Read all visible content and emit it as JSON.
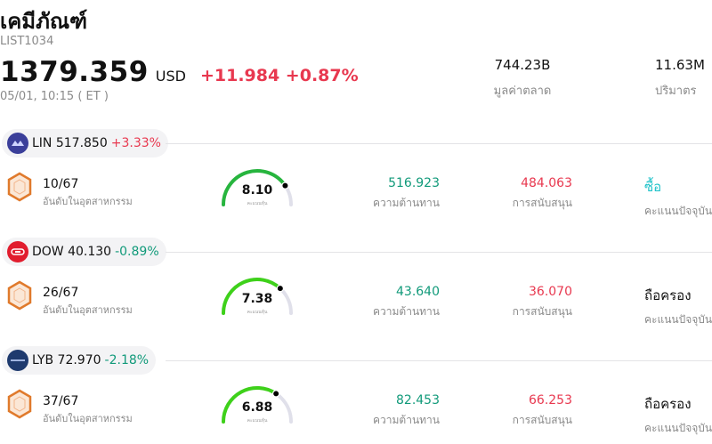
{
  "header": {
    "title": "เคมีภัณฑ์",
    "ticker": "LIST1034",
    "price": "1379.359",
    "currency": "USD",
    "change": "+11.984 +0.87%",
    "timestamp": "05/01, 10:15  ( ET )"
  },
  "stats": {
    "market_cap": {
      "value": "744.23B",
      "label": "มูลค่าตลาด"
    },
    "volume": {
      "value": "11.63M",
      "label": "ปริมาตร"
    }
  },
  "colors": {
    "up": "#e8384f",
    "down": "#119a7a",
    "buy": "#1ec2c9",
    "gauge_track": "#e0e0ea"
  },
  "stocks": [
    {
      "symbol_price": "LIN 517.850",
      "change": "+3.33%",
      "direction": "up",
      "logo_icon": "linde-logo-icon",
      "logo_color": "#3b3f9a",
      "rank": "10/67",
      "rank_label": "อันดับในอุตสาหกรรม",
      "score": "8.10",
      "score_fraction": 0.81,
      "gauge_color": "#27b53e",
      "score_label": "คะแนนหุ้น",
      "resistance": "516.923",
      "resistance_label": "ความต้านทาน",
      "support": "484.063",
      "support_label": "การสนับสนุน",
      "rating": "ซื้อ",
      "rating_type": "buy",
      "rating_label": "คะแนนปัจจุบัน"
    },
    {
      "symbol_price": "DOW 40.130",
      "change": "-0.89%",
      "direction": "down",
      "logo_icon": "dow-logo-icon",
      "logo_color": "#e11d2e",
      "rank": "26/67",
      "rank_label": "อันดับในอุตสาหกรรม",
      "score": "7.38",
      "score_fraction": 0.738,
      "gauge_color": "#3ed11a",
      "score_label": "คะแนนหุ้น",
      "resistance": "43.640",
      "resistance_label": "ความต้านทาน",
      "support": "36.070",
      "support_label": "การสนับสนุน",
      "rating": "ถือครอง",
      "rating_type": "hold",
      "rating_label": "คะแนนปัจจุบัน"
    },
    {
      "symbol_price": "LYB 72.970",
      "change": "-2.18%",
      "direction": "down",
      "logo_icon": "lyondellbasell-logo-icon",
      "logo_color": "#1e3a6e",
      "rank": "37/67",
      "rank_label": "อันดับในอุตสาหกรรม",
      "score": "6.88",
      "score_fraction": 0.688,
      "gauge_color": "#3ed11a",
      "score_label": "คะแนนหุ้น",
      "resistance": "82.453",
      "resistance_label": "ความต้านทาน",
      "support": "66.253",
      "support_label": "การสนับสนุน",
      "rating": "ถือครอง",
      "rating_type": "hold",
      "rating_label": "คะแนนปัจจุบัน"
    }
  ]
}
